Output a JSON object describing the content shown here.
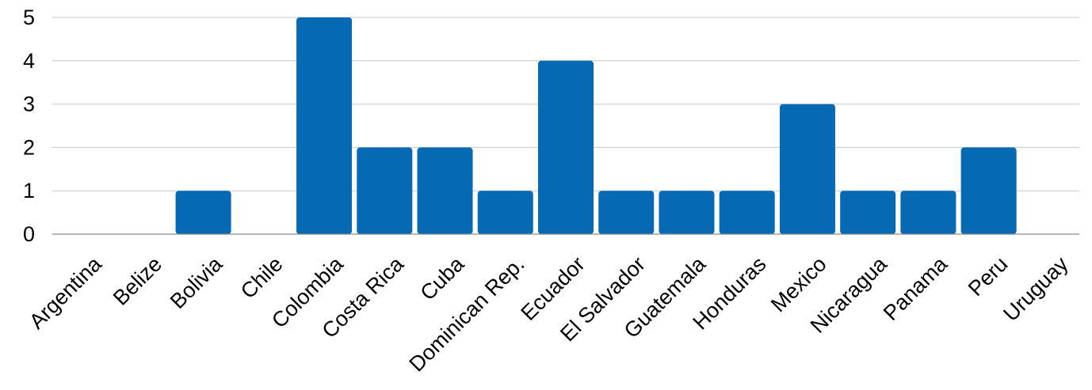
{
  "chart_data": {
    "type": "bar",
    "title": "",
    "xlabel": "",
    "ylabel": "",
    "categories": [
      "Argentina",
      "Belize",
      "Bolivia",
      "Chile",
      "Colombia",
      "Costa Rica",
      "Cuba",
      "Dominican Rep.",
      "Ecuador",
      "El Salvador",
      "Guatemala",
      "Honduras",
      "Mexico",
      "Nicaragua",
      "Panama",
      "Peru",
      "Uruguay"
    ],
    "values": [
      0,
      0,
      1,
      0,
      5,
      2,
      2,
      1,
      4,
      1,
      1,
      1,
      3,
      1,
      1,
      2,
      0
    ],
    "ylim": [
      0,
      5
    ],
    "yticks": [
      "0",
      "1",
      "2",
      "3",
      "4",
      "5"
    ],
    "grid": true,
    "legend": "none",
    "colors": {
      "bar": "#0569b4",
      "grid": "#c8c8c8",
      "axis": "#8c8c8c",
      "text": "#000000"
    }
  }
}
